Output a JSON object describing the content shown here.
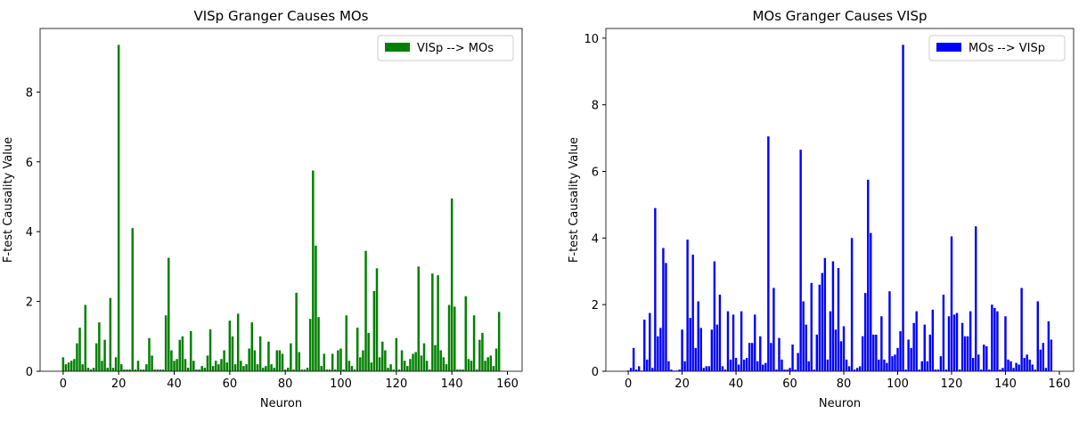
{
  "chart_data": [
    {
      "type": "bar",
      "title": "VISp Granger Causes MOs",
      "x_label": "Neuron",
      "y_label": "F-test Causality Value",
      "x": [
        0,
        1,
        2,
        3,
        4,
        5,
        6,
        7,
        8,
        9,
        10,
        11,
        12,
        13,
        14,
        15,
        16,
        17,
        18,
        19,
        20,
        21,
        22,
        23,
        24,
        25,
        26,
        27,
        28,
        29,
        30,
        31,
        32,
        33,
        34,
        35,
        36,
        37,
        38,
        39,
        40,
        41,
        42,
        43,
        44,
        45,
        46,
        47,
        48,
        49,
        50,
        51,
        52,
        53,
        54,
        55,
        56,
        57,
        58,
        59,
        60,
        61,
        62,
        63,
        64,
        65,
        66,
        67,
        68,
        69,
        70,
        71,
        72,
        73,
        74,
        75,
        76,
        77,
        78,
        79,
        80,
        81,
        82,
        83,
        84,
        85,
        86,
        87,
        88,
        89,
        90,
        91,
        92,
        93,
        94,
        95,
        96,
        97,
        98,
        99,
        100,
        101,
        102,
        103,
        104,
        105,
        106,
        107,
        108,
        109,
        110,
        111,
        112,
        113,
        114,
        115,
        116,
        117,
        118,
        119,
        120,
        121,
        122,
        123,
        124,
        125,
        126,
        127,
        128,
        129,
        130,
        131,
        132,
        133,
        134,
        135,
        136,
        137,
        138,
        139,
        140,
        141,
        142,
        143,
        144,
        145,
        146,
        147,
        148,
        149,
        150,
        151,
        152,
        153,
        154,
        155,
        156,
        157
      ],
      "series": [
        {
          "name": "VISp --> MOs",
          "color": "#008000",
          "values": [
            0.4,
            0.2,
            0.25,
            0.3,
            0.35,
            0.8,
            1.25,
            0.2,
            1.9,
            0.1,
            0.05,
            0.1,
            0.8,
            1.4,
            0.3,
            0.9,
            0.1,
            2.1,
            0.1,
            0.4,
            9.35,
            0.2,
            0.05,
            0.05,
            0.05,
            4.1,
            0.05,
            0.3,
            0.05,
            0.05,
            0.2,
            0.95,
            0.45,
            0.05,
            0.05,
            0.05,
            0.05,
            1.6,
            3.25,
            0.6,
            0.3,
            0.35,
            0.9,
            1.0,
            0.35,
            0.1,
            1.15,
            0.3,
            0.05,
            0.05,
            0.15,
            0.1,
            0.45,
            1.2,
            0.15,
            0.3,
            0.2,
            0.35,
            0.6,
            0.25,
            1.45,
            1.0,
            0.2,
            1.65,
            0.3,
            0.15,
            0.2,
            0.65,
            1.4,
            0.6,
            0.2,
            1.0,
            0.1,
            0.15,
            0.85,
            0.2,
            0.1,
            0.6,
            0.6,
            0.5,
            0.05,
            0.1,
            0.8,
            0.05,
            2.25,
            0.55,
            0.05,
            0.05,
            0.1,
            1.5,
            5.75,
            3.6,
            1.55,
            0.15,
            0.5,
            0.05,
            0.05,
            0.5,
            0.05,
            0.6,
            0.65,
            0.05,
            1.6,
            0.3,
            0.15,
            0.05,
            1.25,
            0.4,
            0.6,
            3.45,
            1.1,
            0.25,
            2.3,
            2.95,
            0.4,
            0.85,
            0.6,
            0.1,
            0.2,
            0.05,
            0.95,
            0.05,
            0.6,
            0.3,
            0.15,
            0.35,
            0.5,
            0.55,
            3.0,
            0.45,
            0.8,
            0.3,
            0.05,
            2.8,
            0.75,
            2.75,
            0.6,
            0.4,
            0.2,
            1.9,
            4.95,
            1.85,
            0.05,
            0.05,
            0.05,
            2.15,
            0.35,
            0.3,
            1.6,
            0.05,
            0.9,
            1.1,
            0.3,
            0.4,
            0.45,
            0.15,
            0.65,
            1.7
          ]
        }
      ],
      "xlim": [
        -8.3,
        165.3
      ],
      "xticks": [
        0,
        20,
        40,
        60,
        80,
        100,
        120,
        140,
        160
      ],
      "ylim": [
        0,
        9.82
      ],
      "yticks": [
        0,
        2,
        4,
        6,
        8
      ],
      "legend": "upper right"
    },
    {
      "type": "bar",
      "title": "MOs Granger Causes VISp",
      "x_label": "Neuron",
      "y_label": "F-test Causality Value",
      "x": [
        0,
        1,
        2,
        3,
        4,
        5,
        6,
        7,
        8,
        9,
        10,
        11,
        12,
        13,
        14,
        15,
        16,
        17,
        18,
        19,
        20,
        21,
        22,
        23,
        24,
        25,
        26,
        27,
        28,
        29,
        30,
        31,
        32,
        33,
        34,
        35,
        36,
        37,
        38,
        39,
        40,
        41,
        42,
        43,
        44,
        45,
        46,
        47,
        48,
        49,
        50,
        51,
        52,
        53,
        54,
        55,
        56,
        57,
        58,
        59,
        60,
        61,
        62,
        63,
        64,
        65,
        66,
        67,
        68,
        69,
        70,
        71,
        72,
        73,
        74,
        75,
        76,
        77,
        78,
        79,
        80,
        81,
        82,
        83,
        84,
        85,
        86,
        87,
        88,
        89,
        90,
        91,
        92,
        93,
        94,
        95,
        96,
        97,
        98,
        99,
        100,
        101,
        102,
        103,
        104,
        105,
        106,
        107,
        108,
        109,
        110,
        111,
        112,
        113,
        114,
        115,
        116,
        117,
        118,
        119,
        120,
        121,
        122,
        123,
        124,
        125,
        126,
        127,
        128,
        129,
        130,
        131,
        132,
        133,
        134,
        135,
        136,
        137,
        138,
        139,
        140,
        141,
        142,
        143,
        144,
        145,
        146,
        147,
        148,
        149,
        150,
        151,
        152,
        153,
        154,
        155,
        156,
        157
      ],
      "series": [
        {
          "name": "MOs --> VISp",
          "color": "#0000ff",
          "values": [
            0.02,
            0.1,
            0.7,
            0.05,
            0.15,
            0.02,
            1.55,
            0.35,
            1.75,
            0.1,
            4.9,
            1.05,
            1.3,
            3.7,
            3.25,
            0.3,
            0.05,
            0.02,
            0.02,
            0.05,
            1.25,
            0.3,
            3.95,
            1.6,
            3.5,
            0.7,
            2.1,
            1.3,
            0.1,
            0.15,
            0.15,
            1.25,
            3.3,
            1.4,
            2.3,
            0.15,
            0.05,
            1.8,
            0.35,
            1.7,
            0.4,
            0.2,
            1.8,
            0.35,
            0.4,
            0.85,
            0.85,
            1.7,
            0.3,
            1.05,
            0.2,
            0.25,
            7.05,
            0.85,
            2.5,
            0.05,
            1.0,
            0.35,
            0.05,
            0.05,
            0.1,
            0.8,
            0.05,
            0.55,
            6.65,
            2.1,
            1.4,
            0.3,
            2.65,
            0.05,
            1.1,
            2.6,
            2.95,
            3.4,
            0.35,
            1.8,
            3.3,
            1.25,
            3.1,
            0.9,
            1.35,
            0.35,
            0.15,
            4.0,
            0.05,
            0.1,
            0.15,
            1.05,
            2.35,
            5.75,
            4.15,
            1.1,
            1.1,
            0.35,
            1.65,
            0.35,
            0.25,
            2.4,
            0.45,
            0.5,
            0.7,
            1.2,
            9.8,
            0.05,
            0.95,
            0.7,
            1.45,
            1.8,
            0.05,
            0.3,
            1.4,
            0.3,
            1.1,
            1.85,
            0.05,
            0.05,
            0.45,
            2.3,
            0.05,
            1.65,
            4.05,
            1.7,
            1.75,
            0.05,
            1.45,
            1.05,
            1.05,
            1.8,
            0.4,
            4.35,
            0.5,
            0.05,
            0.8,
            0.75,
            0.05,
            2.0,
            1.9,
            1.8,
            0.05,
            0.1,
            1.65,
            0.35,
            0.3,
            0.1,
            0.25,
            0.2,
            2.5,
            0.4,
            0.5,
            0.35,
            0.2,
            0.05,
            2.1,
            0.65,
            0.85,
            0.1,
            1.5,
            0.95
          ]
        }
      ],
      "xlim": [
        -8.3,
        165.3
      ],
      "xticks": [
        0,
        20,
        40,
        60,
        80,
        100,
        120,
        140,
        160
      ],
      "ylim": [
        0,
        10.29
      ],
      "yticks": [
        0,
        2,
        4,
        6,
        8,
        10
      ],
      "legend": "upper right"
    }
  ]
}
